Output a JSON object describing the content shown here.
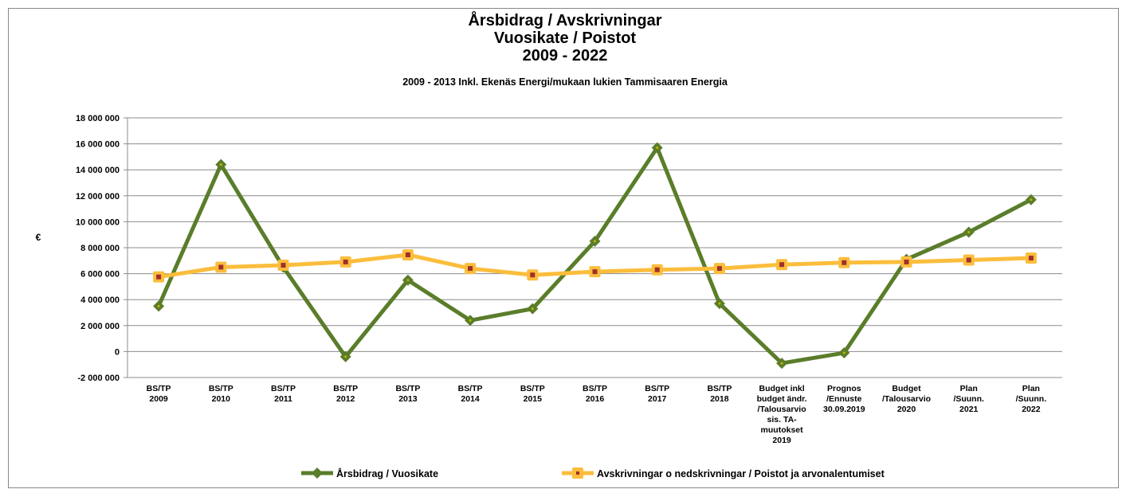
{
  "chart_data": {
    "type": "line",
    "title": "Årsbidrag / Avskrivningar\nVuosikate / Poistot\n2009 - 2022",
    "subtitle": "2009 - 2013   Inkl. Ekenäs Energi/mukaan lukien Tammisaaren Energia",
    "y_label": "€",
    "categories": [
      "BS/TP\n2009",
      "BS/TP\n2010",
      "BS/TP\n2011",
      "BS/TP\n2012",
      "BS/TP\n2013",
      "BS/TP\n2014",
      "BS/TP\n2015",
      "BS/TP\n2016",
      "BS/TP\n2017",
      "BS/TP\n2018",
      "Budget inkl\nbudget ändr.\n/Talousarvio\nsis. TA-\nmuutokset\n2019",
      "Prognos\n/Ennuste\n30.09.2019",
      "Budget\n/Talousarvio\n2020",
      "Plan\n/Suunn.\n2021",
      "Plan\n/Suunn.\n2022"
    ],
    "series": [
      {
        "name": "Årsbidrag / Vuosikate",
        "color": "#5a7d2a",
        "marker": "diamond",
        "marker_color": "#c8b400",
        "values": [
          3500000,
          14400000,
          6500000,
          -400000,
          5500000,
          2400000,
          3300000,
          8500000,
          15700000,
          3700000,
          -900000,
          -100000,
          7100000,
          9200000,
          11700000
        ]
      },
      {
        "name": "Avskrivningar o nedskrivningar / Poistot ja arvonalentumiset",
        "color": "#fbbd3c",
        "marker": "square",
        "marker_color": "#a0302a",
        "values": [
          5750000,
          6500000,
          6650000,
          6900000,
          7450000,
          6400000,
          5900000,
          6150000,
          6300000,
          6400000,
          6700000,
          6850000,
          6900000,
          7050000,
          7200000
        ]
      }
    ],
    "ylim": [
      -2000000,
      18000000
    ],
    "yticks": [
      {
        "value": -2000000,
        "label": "-2 000 000"
      },
      0,
      {
        "value": 2000000,
        "label": "2 000 000"
      },
      {
        "value": 4000000,
        "label": "4 000 000"
      },
      {
        "value": 6000000,
        "label": "6 000 000"
      },
      {
        "value": 8000000,
        "label": "8 000 000"
      },
      {
        "value": 10000000,
        "label": "10 000 000"
      },
      {
        "value": 12000000,
        "label": "12 000 000"
      },
      {
        "value": 14000000,
        "label": "14 000 000"
      },
      {
        "value": 16000000,
        "label": "16 000 000"
      },
      {
        "value": 18000000,
        "label": "18 000 000"
      }
    ],
    "grid": true,
    "legend": "bottom"
  }
}
